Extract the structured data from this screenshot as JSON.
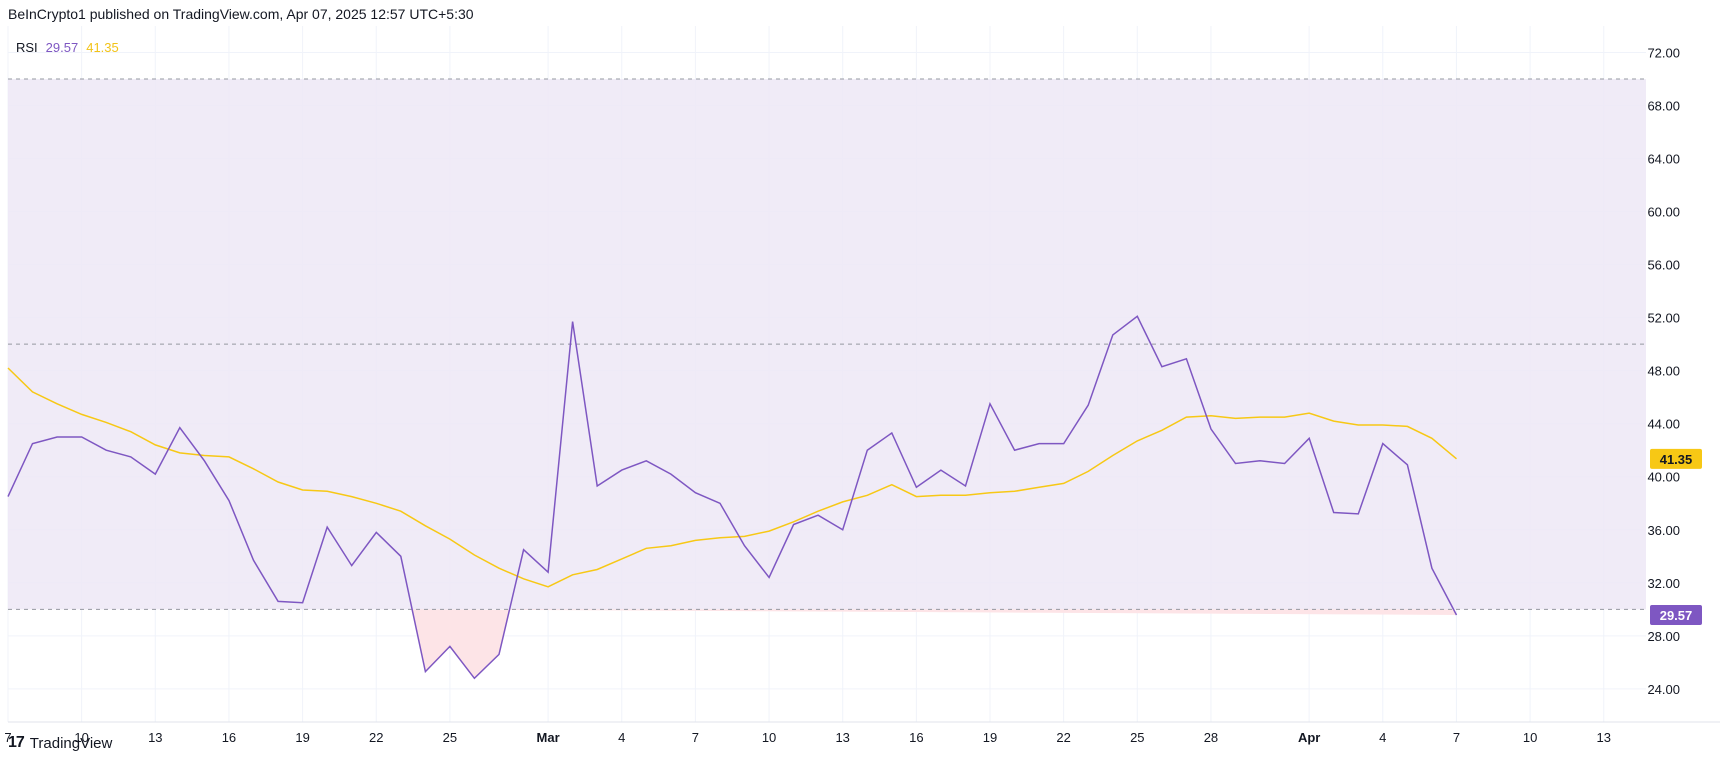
{
  "header": {
    "text": "BeInCrypto1 published on TradingView.com, Apr 07, 2025 12:57 UTC+5:30"
  },
  "legend": {
    "name": "RSI",
    "value1": "29.57",
    "value2": "41.35"
  },
  "footer": {
    "logo": "17",
    "brand": "TradingView"
  },
  "colors": {
    "rsi": "#7e57c2",
    "ma": "#f7c815",
    "band": "#ede7f6",
    "oversold_fill": "#fde4e7"
  },
  "chart_data": {
    "type": "line",
    "ylim": [
      21.5,
      74
    ],
    "y_ticks": [
      "24.00",
      "28.00",
      "32.00",
      "36.00",
      "40.00",
      "44.00",
      "48.00",
      "52.00",
      "56.00",
      "60.00",
      "64.00",
      "68.00",
      "72.00"
    ],
    "x_tick_labels": [
      {
        "i": 0,
        "label": "7"
      },
      {
        "i": 3,
        "label": "10"
      },
      {
        "i": 6,
        "label": "13"
      },
      {
        "i": 9,
        "label": "16"
      },
      {
        "i": 12,
        "label": "19"
      },
      {
        "i": 15,
        "label": "22"
      },
      {
        "i": 18,
        "label": "25"
      },
      {
        "i": 22,
        "label": "Mar"
      },
      {
        "i": 25,
        "label": "4"
      },
      {
        "i": 28,
        "label": "7"
      },
      {
        "i": 31,
        "label": "10"
      },
      {
        "i": 34,
        "label": "13"
      },
      {
        "i": 37,
        "label": "16"
      },
      {
        "i": 40,
        "label": "19"
      },
      {
        "i": 43,
        "label": "22"
      },
      {
        "i": 46,
        "label": "25"
      },
      {
        "i": 49,
        "label": "28"
      },
      {
        "i": 53,
        "label": "Apr"
      },
      {
        "i": 56,
        "label": "4"
      },
      {
        "i": 59,
        "label": "7"
      },
      {
        "i": 62,
        "label": "10"
      },
      {
        "i": 65,
        "label": "13"
      }
    ],
    "bands": {
      "upper": 70,
      "middle": 50,
      "lower": 30
    },
    "series": [
      {
        "name": "RSI",
        "values": [
          38.5,
          42.5,
          43.0,
          43.0,
          42.0,
          41.5,
          40.2,
          43.7,
          41.2,
          38.2,
          33.7,
          30.6,
          30.5,
          36.2,
          33.3,
          35.8,
          34.0,
          25.3,
          27.2,
          24.8,
          26.6,
          34.5,
          32.8,
          51.7,
          39.3,
          40.5,
          41.2,
          40.2,
          38.8,
          38.0,
          34.8,
          32.4,
          36.4,
          37.1,
          36.0,
          42.0,
          43.3,
          39.2,
          40.5,
          39.3,
          45.5,
          42.0,
          42.5,
          42.5,
          45.4,
          50.7,
          52.1,
          48.3,
          48.9,
          43.6,
          41.0,
          41.2,
          41.0,
          42.9,
          37.3,
          37.2,
          42.5,
          40.9,
          33.1,
          29.57
        ],
        "last_label": "29.57"
      },
      {
        "name": "MA",
        "values": [
          48.2,
          46.4,
          45.5,
          44.7,
          44.1,
          43.4,
          42.4,
          41.8,
          41.6,
          41.5,
          40.6,
          39.6,
          39.0,
          38.9,
          38.5,
          38.0,
          37.4,
          36.3,
          35.3,
          34.1,
          33.1,
          32.3,
          31.7,
          32.6,
          33.0,
          33.8,
          34.6,
          34.8,
          35.2,
          35.4,
          35.5,
          35.9,
          36.6,
          37.4,
          38.1,
          38.6,
          39.4,
          38.5,
          38.6,
          38.6,
          38.8,
          38.9,
          39.2,
          39.5,
          40.4,
          41.6,
          42.7,
          43.5,
          44.5,
          44.6,
          44.4,
          44.5,
          44.5,
          44.8,
          44.2,
          43.9,
          43.9,
          43.8,
          42.9,
          41.35
        ],
        "last_label": "41.35"
      }
    ]
  }
}
